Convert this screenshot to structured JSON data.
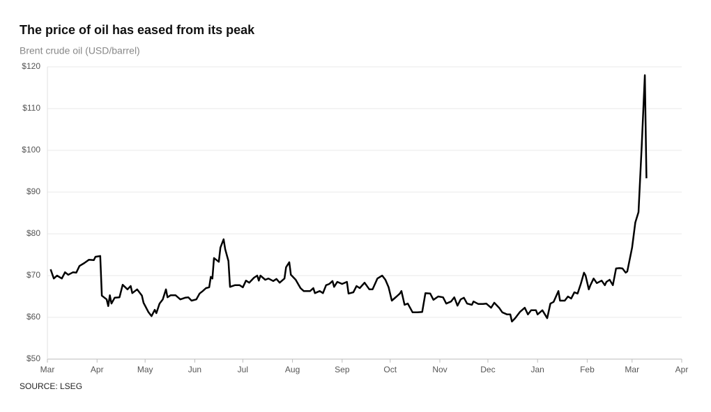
{
  "chart_data": {
    "type": "line",
    "title": "The price of oil has eased from its peak",
    "subtitle": "Brent crude oil (USD/barrel)",
    "source": "SOURCE: LSEG",
    "grid": true,
    "xlim": [
      0,
      396
    ],
    "xticks": [
      {
        "value": 0,
        "label": "Mar"
      },
      {
        "value": 31,
        "label": "Apr"
      },
      {
        "value": 61,
        "label": "May"
      },
      {
        "value": 92,
        "label": "Jun"
      },
      {
        "value": 122,
        "label": "Jul"
      },
      {
        "value": 153,
        "label": "Aug"
      },
      {
        "value": 184,
        "label": "Sep"
      },
      {
        "value": 214,
        "label": "Oct"
      },
      {
        "value": 245,
        "label": "Nov"
      },
      {
        "value": 275,
        "label": "Dec"
      },
      {
        "value": 306,
        "label": "Jan"
      },
      {
        "value": 337,
        "label": "Feb"
      },
      {
        "value": 365,
        "label": "Mar"
      },
      {
        "value": 396,
        "label": "Apr"
      }
    ],
    "ylim": [
      50,
      120
    ],
    "yticks": [
      {
        "value": 50,
        "label": "$50"
      },
      {
        "value": 60,
        "label": "$60"
      },
      {
        "value": 70,
        "label": "$70"
      },
      {
        "value": 80,
        "label": "$80"
      },
      {
        "value": 90,
        "label": "$90"
      },
      {
        "value": 100,
        "label": "$100"
      },
      {
        "value": 110,
        "label": "$110"
      },
      {
        "value": 120,
        "label": "$120"
      }
    ],
    "series": [
      {
        "name": "Brent crude oil",
        "color": "#000000",
        "x": [
          2,
          4,
          6,
          9,
          11,
          13,
          16,
          18,
          20,
          23,
          26,
          29,
          30,
          33,
          34,
          37,
          38,
          39,
          40,
          42,
          45,
          47,
          50,
          52,
          53,
          56,
          59,
          60,
          63,
          65,
          67,
          68,
          70,
          72,
          74,
          75,
          77,
          80,
          83,
          86,
          88,
          90,
          93,
          95,
          97,
          99,
          101,
          102,
          103,
          104,
          107,
          108,
          110,
          111,
          113,
          114,
          117,
          120,
          122,
          124,
          126,
          129,
          131,
          132,
          133,
          136,
          138,
          141,
          143,
          145,
          148,
          149,
          151,
          152,
          155,
          158,
          160,
          164,
          166,
          167,
          170,
          172,
          174,
          176,
          178,
          179,
          181,
          184,
          187,
          188,
          191,
          193,
          195,
          198,
          201,
          203,
          206,
          209,
          211,
          213,
          215,
          218,
          220,
          221,
          223,
          225,
          228,
          231,
          234,
          236,
          239,
          241,
          244,
          247,
          249,
          252,
          254,
          256,
          258,
          260,
          262,
          265,
          266,
          269,
          272,
          274,
          277,
          279,
          282,
          284,
          287,
          289,
          290,
          292,
          295,
          298,
          300,
          302,
          305,
          306,
          309,
          312,
          314,
          316,
          319,
          320,
          323,
          325,
          327,
          329,
          331,
          333,
          335,
          336,
          338,
          339,
          341,
          343,
          346,
          348,
          349,
          351,
          353,
          355,
          357,
          359,
          361,
          362,
          365,
          367,
          369,
          371,
          373,
          374
        ],
        "values": [
          71.5,
          69.3,
          70,
          69.3,
          70.8,
          70.2,
          70.8,
          70.7,
          72.3,
          73,
          73.8,
          73.7,
          74.5,
          74.7,
          65.2,
          64.3,
          62.7,
          65.3,
          63.3,
          64.7,
          64.8,
          67.8,
          66.7,
          67.5,
          65.8,
          66.7,
          65.2,
          63.5,
          61.3,
          60.3,
          61.8,
          61,
          63.3,
          64.3,
          66.7,
          64.8,
          65.3,
          65.3,
          64.3,
          64.7,
          64.8,
          64,
          64.3,
          65.7,
          66.3,
          67,
          67.2,
          69.7,
          69.3,
          74.2,
          73.3,
          76.7,
          78.7,
          76.3,
          73.5,
          67.3,
          67.7,
          67.7,
          67.2,
          68.8,
          68.3,
          69.5,
          70,
          68.8,
          70,
          69,
          69.3,
          68.7,
          69.2,
          68.3,
          69.3,
          72,
          73.2,
          70.2,
          69,
          67,
          66.3,
          66.3,
          67,
          65.8,
          66.3,
          65.8,
          67.7,
          68,
          68.7,
          67.3,
          68.5,
          68,
          68.5,
          65.7,
          66,
          67.5,
          67,
          68.3,
          66.7,
          66.7,
          69.3,
          70,
          69,
          67.2,
          64,
          65,
          65.7,
          66.3,
          63,
          63.3,
          61.2,
          61.2,
          61.3,
          65.8,
          65.7,
          64.2,
          65,
          64.8,
          63.3,
          63.8,
          64.8,
          62.8,
          64.3,
          64.7,
          63.3,
          63,
          63.8,
          63.2,
          63.2,
          63.3,
          62.3,
          63.5,
          62.3,
          61.2,
          60.7,
          60.7,
          59,
          59.8,
          61.3,
          62.3,
          60.7,
          61.7,
          61.7,
          60.7,
          61.7,
          59.8,
          63.3,
          63.7,
          66.3,
          64,
          64,
          65,
          64.5,
          66,
          65.7,
          68,
          70.7,
          70,
          66.7,
          67.7,
          69.3,
          68.2,
          68.8,
          67.7,
          68.5,
          69,
          67.7,
          71.7,
          71.8,
          71.7,
          70.7,
          71,
          76.7,
          82.7,
          85.2,
          101,
          118,
          93.3
        ]
      }
    ]
  }
}
